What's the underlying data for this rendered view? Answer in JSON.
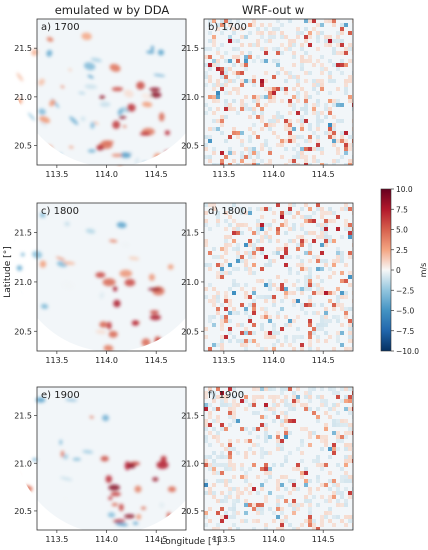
{
  "chart_data": {
    "type": "heatmap",
    "layout": "3 rows x 2 columns of map panels with shared colorbar",
    "column_titles": [
      "emulated w by DDA",
      "WRF-out w"
    ],
    "xlabel": "Longitude [°]",
    "ylabel": "Latitude [°]",
    "xlim": [
      113.3,
      114.8
    ],
    "ylim": [
      20.3,
      21.8
    ],
    "x_ticks": [
      "113.5",
      "114.0",
      "114.5"
    ],
    "y_ticks": [
      "21.5",
      "21.0",
      "20.5"
    ],
    "colorbar": {
      "label": "m/s",
      "vmin": -10.0,
      "vmax": 10.0,
      "ticks": [
        "10.0",
        "7.5",
        "5.0",
        "2.5",
        "0",
        "−2.5",
        "−5.0",
        "−7.5",
        "−10.0"
      ],
      "colormap": "RdBu_r"
    },
    "panels": [
      {
        "label": "a) 1700",
        "source": "emulated",
        "masked_circle": true
      },
      {
        "label": "b) 1700",
        "source": "wrf"
      },
      {
        "label": "c) 1800",
        "source": "emulated",
        "masked_circle": true
      },
      {
        "label": "d) 1800",
        "source": "wrf"
      },
      {
        "label": "e) 1900",
        "source": "emulated",
        "masked_circle": true
      },
      {
        "label": "f) 1900",
        "source": "wrf"
      }
    ]
  }
}
